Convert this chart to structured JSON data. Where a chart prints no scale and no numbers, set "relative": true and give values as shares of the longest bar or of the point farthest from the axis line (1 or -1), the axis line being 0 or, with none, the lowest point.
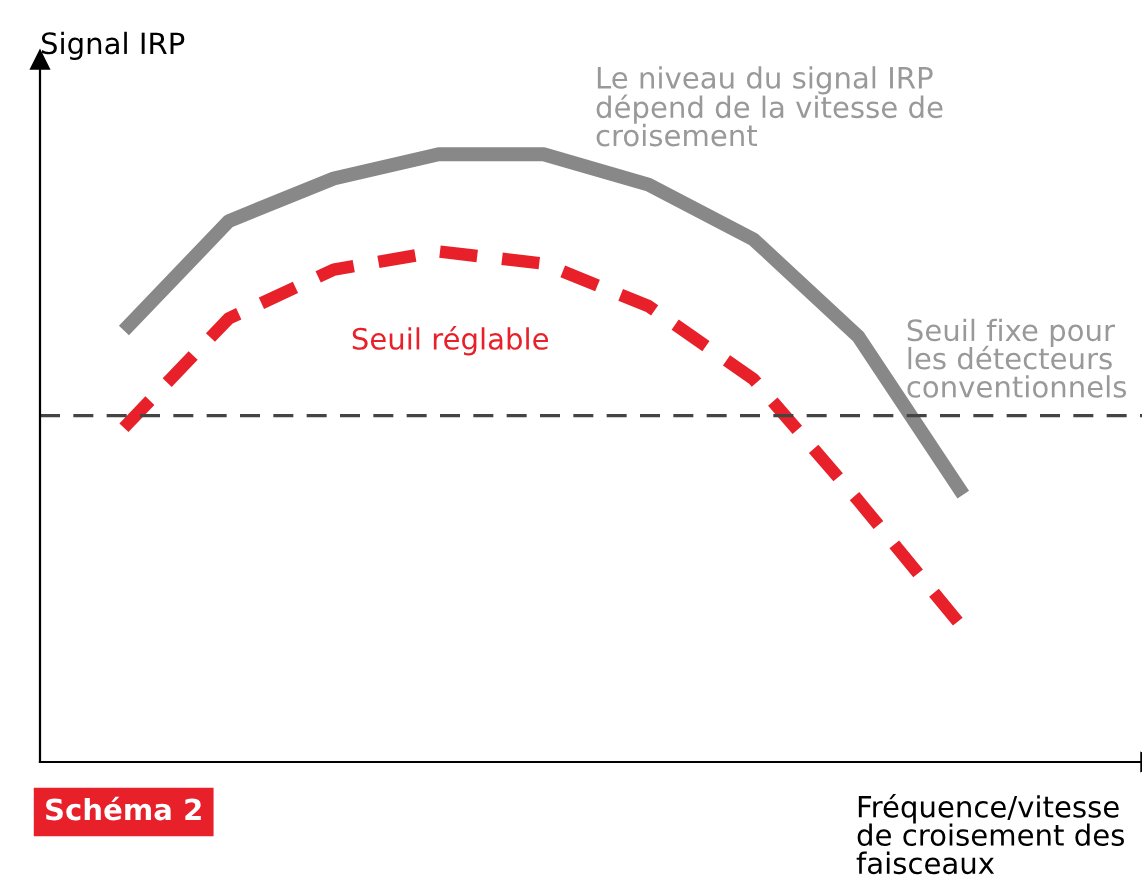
{
  "chart_data": {
    "type": "line",
    "relative": true,
    "ylabel": "Signal IRP",
    "xlabel": "Fréquence/vitesse\nde croisement des\nfaisceaux",
    "categories": [
      null,
      null,
      null,
      null,
      null,
      null,
      null,
      null,
      null
    ],
    "series": [
      {
        "name": "Le niveau du signal IRP\ndépend de la vitesse de\ncroisement",
        "color": "#888888",
        "line_style": "solid",
        "values": [
          0.71,
          0.89,
          0.96,
          1.0,
          1.0,
          0.95,
          0.86,
          0.7,
          0.44
        ]
      },
      {
        "name": "Seuil réglable",
        "color": "#e8202a",
        "line_style": "dashed",
        "values": [
          0.55,
          0.73,
          0.81,
          0.84,
          0.82,
          0.75,
          0.63,
          0.43,
          0.22
        ]
      }
    ],
    "ref_lines": [
      {
        "axis": "y",
        "value": 0.57,
        "label": "Seuil fixe pour\nles détecteurs\nconventionnels",
        "color": "#444444",
        "line_style": "dashed"
      }
    ],
    "annotations": [
      "Schéma 2"
    ],
    "grid": false,
    "legend": false,
    "marker": "none"
  }
}
